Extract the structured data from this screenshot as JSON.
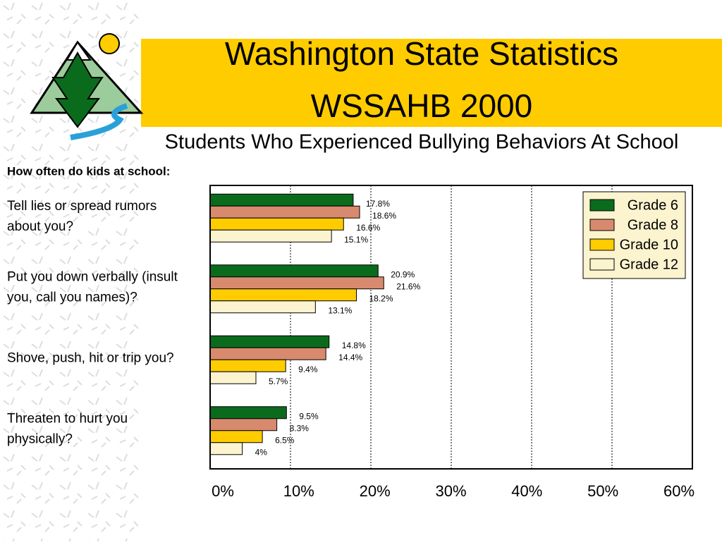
{
  "chart_data": {
    "type": "bar",
    "orientation": "horizontal",
    "title": [
      "Washington State Statistics",
      "WSSAHB 2000"
    ],
    "subtitle": "Students Who Experienced Bullying Behaviors At School",
    "y_label": "How often do kids at school:",
    "categories": [
      [
        "Tell lies or spread rumors",
        "about you?"
      ],
      [
        "Put you down verbally (insult",
        "you, call you names)?"
      ],
      [
        "Shove, push, hit or trip you?"
      ],
      [
        "Threaten to hurt you",
        "physically?"
      ]
    ],
    "series": [
      {
        "name": "Grade 6",
        "color": "#0b6b1d",
        "values": [
          17.8,
          20.9,
          14.8,
          9.5
        ],
        "value_labels": [
          "17.8%",
          "20.9%",
          "14.8%",
          "9.5%"
        ]
      },
      {
        "name": "Grade 8",
        "color": "#d88a6e",
        "values": [
          18.6,
          21.6,
          14.4,
          8.3
        ],
        "value_labels": [
          "18.6%",
          "21.6%",
          "14.4%",
          "8.3%"
        ]
      },
      {
        "name": "Grade 10",
        "color": "#ffcc00",
        "values": [
          16.6,
          18.2,
          9.4,
          6.5
        ],
        "value_labels": [
          "16.6%",
          "18.2%",
          "9.4%",
          "6.5%"
        ]
      },
      {
        "name": "Grade 12",
        "color": "#fcf3cf",
        "values": [
          15.1,
          13.1,
          5.7,
          4
        ],
        "value_labels": [
          "15.1%",
          "13.1%",
          "5.7%",
          "4%"
        ]
      }
    ],
    "xlim": [
      0,
      60
    ],
    "xticks": [
      {
        "value": 0,
        "label": "0%"
      },
      {
        "value": 10,
        "label": "10%"
      },
      {
        "value": 20,
        "label": "20%"
      },
      {
        "value": 30,
        "label": "30%"
      },
      {
        "value": 40,
        "label": "40%"
      },
      {
        "value": 50,
        "label": "50%"
      },
      {
        "value": 60,
        "label": "60%"
      }
    ],
    "grid": true,
    "legend": "upper right"
  }
}
